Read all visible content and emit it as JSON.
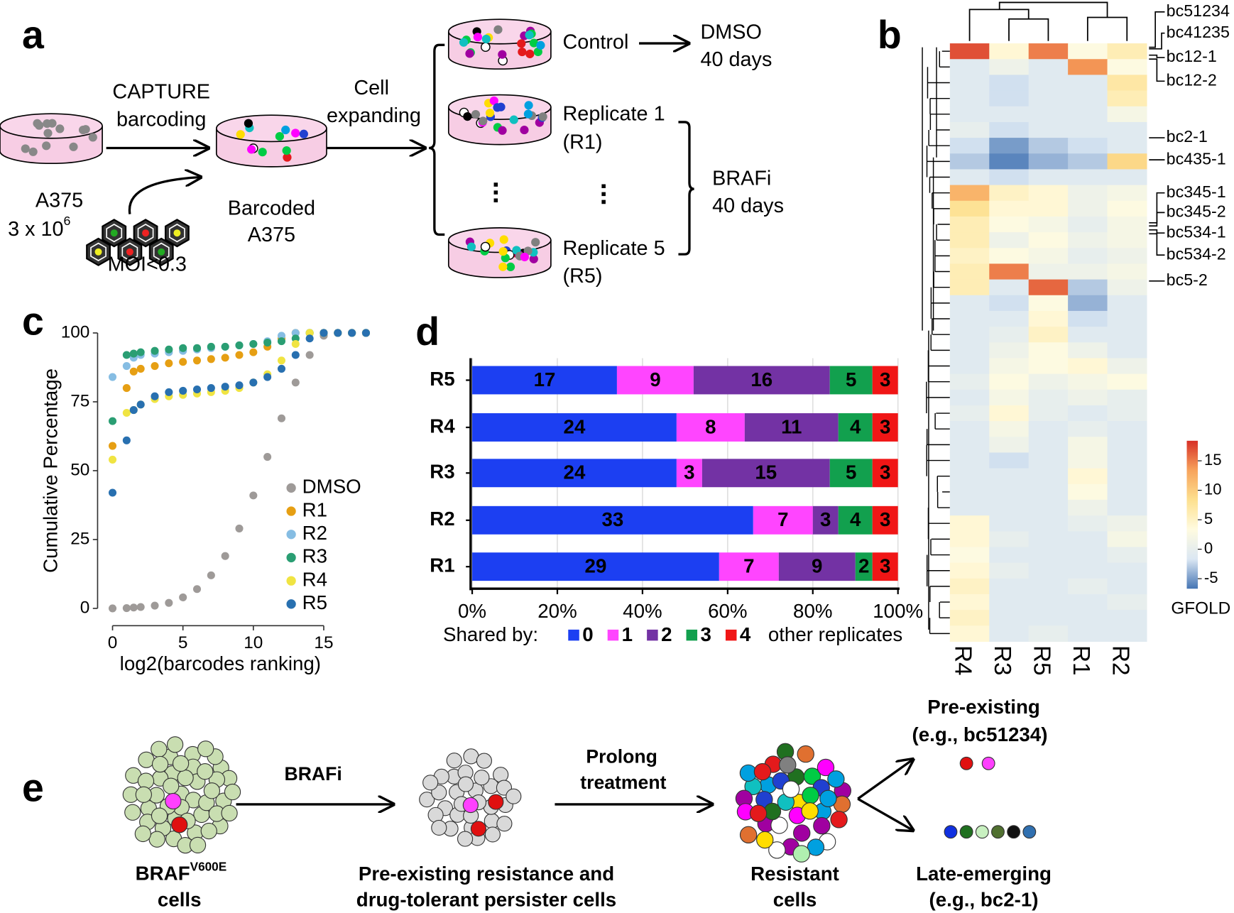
{
  "panel_labels": [
    "a",
    "b",
    "c",
    "d",
    "e"
  ],
  "diagram_a": {
    "start_cells": "A375",
    "start_count": "3 x 10",
    "start_count_exponent": "6",
    "barcoding": [
      "CAPTURE",
      "barcoding"
    ],
    "moi": "MOI<0.3",
    "barcoded": [
      "Barcoded",
      "A375"
    ],
    "expanding": [
      "Cell",
      "expanding"
    ],
    "control": "Control",
    "dmso": [
      "DMSO",
      "40 days"
    ],
    "replicate_1": [
      "Replicate 1",
      "(R1)"
    ],
    "replicate_5": [
      "Replicate 5",
      "(R5)"
    ],
    "brafi": [
      "BRAFi",
      "40 days"
    ]
  },
  "chart_data": [
    {
      "type": "heatmap",
      "columns": [
        "R4",
        "R3",
        "R5",
        "R1",
        "R2"
      ],
      "values": [
        [
          17,
          4,
          15,
          3,
          6
        ],
        [
          -1,
          1,
          -1,
          14,
          3
        ],
        [
          -1,
          -2,
          -1,
          -1,
          7
        ],
        [
          -1,
          -2,
          -1,
          -1,
          6
        ],
        [
          -1,
          -1,
          -1,
          -1,
          2
        ],
        [
          0,
          -2,
          -1,
          -1,
          -1
        ],
        [
          -2,
          -5,
          -3,
          -2,
          -1
        ],
        [
          -3,
          -6,
          -4,
          -3,
          9
        ],
        [
          -1,
          -2,
          -1,
          -1,
          -1
        ],
        [
          12,
          5,
          4,
          1,
          2
        ],
        [
          8,
          4,
          4,
          1,
          3
        ],
        [
          6,
          3,
          2,
          0,
          2
        ],
        [
          6,
          1,
          3,
          1,
          2
        ],
        [
          5,
          3,
          2,
          0,
          1
        ],
        [
          6,
          15,
          1,
          1,
          2
        ],
        [
          6,
          -1,
          16,
          -3,
          1
        ],
        [
          -1,
          -2,
          3,
          -4,
          -1
        ],
        [
          -1,
          -1,
          4,
          -2,
          -1
        ],
        [
          -1,
          0,
          5,
          -1,
          -1
        ],
        [
          -1,
          1,
          3,
          1,
          -1
        ],
        [
          -1,
          2,
          3,
          4,
          1
        ],
        [
          0,
          3,
          1,
          2,
          3
        ],
        [
          -1,
          2,
          0,
          1,
          0
        ],
        [
          0,
          4,
          0,
          -1,
          0
        ],
        [
          -1,
          2,
          -1,
          0,
          -1
        ],
        [
          -1,
          1,
          -1,
          2,
          -1
        ],
        [
          -1,
          -2,
          -1,
          2,
          -1
        ],
        [
          -1,
          -1,
          -1,
          4,
          -1
        ],
        [
          -1,
          -1,
          -1,
          3,
          -1
        ],
        [
          -1,
          -1,
          -1,
          1,
          -1
        ],
        [
          4,
          -1,
          -1,
          0,
          1
        ],
        [
          4,
          0,
          -1,
          -1,
          2
        ],
        [
          3,
          -1,
          -1,
          -1,
          0
        ],
        [
          4,
          0,
          -1,
          -1,
          -1
        ],
        [
          5,
          -1,
          -1,
          0,
          -1
        ],
        [
          4,
          -1,
          -1,
          -1,
          0
        ],
        [
          5,
          -1,
          -1,
          -1,
          -1
        ],
        [
          4,
          -1,
          0,
          -1,
          -1
        ]
      ],
      "annotations": [
        "bc51234",
        "bc41235",
        "bc12-1",
        "bc12-2",
        "bc2-1",
        "bc435-1",
        "bc345-1",
        "bc345-2",
        "bc534-1",
        "bc534-2",
        "bc5-2"
      ],
      "colorscale": [
        "#4575b4",
        "#dbe7f3",
        "#fffbe0",
        "#fde08f",
        "#f7a35c",
        "#d73027"
      ],
      "colorbar": {
        "label": "GFOLD",
        "lim": [
          -6.7,
          18.4
        ],
        "ticks": [
          -5,
          0,
          5,
          10,
          15
        ]
      }
    },
    {
      "type": "scatter",
      "ylabel": "Cumulative Percentage",
      "xlabel": "log2(barcodes ranking)",
      "x": [
        0,
        1,
        1.5,
        2,
        3,
        4,
        5,
        6,
        7,
        8,
        9,
        10,
        11,
        12,
        13,
        14,
        15,
        16,
        17,
        18
      ],
      "series": [
        {
          "name": "DMSO",
          "color": "#9e9a98",
          "values": [
            0,
            0.1,
            0.3,
            0.5,
            1,
            2,
            4,
            7,
            12,
            19,
            29,
            41,
            55,
            69,
            82,
            92,
            99,
            100,
            100,
            100
          ]
        },
        {
          "name": "R1",
          "color": "#e69f13",
          "values": [
            59,
            80,
            86,
            87,
            88,
            89,
            89.5,
            90,
            90.5,
            91,
            92,
            93,
            95,
            98,
            100,
            100,
            100,
            100,
            100,
            100
          ]
        },
        {
          "name": "R2",
          "color": "#86bde3",
          "values": [
            84,
            88,
            91,
            92,
            92.5,
            93,
            93.5,
            94,
            94.5,
            95,
            95.5,
            96,
            97,
            99,
            100,
            100,
            100,
            100,
            100,
            100
          ]
        },
        {
          "name": "R3",
          "color": "#2a9e73",
          "values": [
            68,
            92,
            92.5,
            93,
            93.5,
            94,
            94.5,
            94.5,
            95,
            95,
            95.5,
            96,
            96.5,
            97,
            98,
            100,
            100,
            100,
            100,
            100
          ]
        },
        {
          "name": "R4",
          "color": "#f0e442",
          "values": [
            54,
            71,
            72,
            74,
            76,
            77,
            77.5,
            78,
            78.5,
            79,
            80,
            82,
            85,
            90,
            96,
            100,
            100,
            100,
            100,
            100
          ]
        },
        {
          "name": "R5",
          "color": "#2870b0",
          "values": [
            42,
            61,
            72,
            74,
            77,
            78.5,
            79,
            79.5,
            80,
            80.5,
            81,
            82,
            84,
            87,
            92,
            98,
            100,
            100,
            100,
            100
          ]
        }
      ],
      "xlim": [
        -0.8,
        18.5
      ],
      "ylim": [
        -3,
        104
      ],
      "xticks": [
        0,
        5,
        10,
        15
      ],
      "yticks": [
        0,
        25,
        50,
        75,
        100
      ],
      "legend": "lower right"
    },
    {
      "type": "stacked-bar-100",
      "orientation": "horizontal",
      "categories": [
        "R5",
        "R4",
        "R3",
        "R2",
        "R1"
      ],
      "series": [
        {
          "name": "0",
          "color": "#1c3ff2",
          "values": [
            17,
            24,
            24,
            33,
            29
          ]
        },
        {
          "name": "1",
          "color": "#ff45ff",
          "values": [
            9,
            8,
            3,
            7,
            7
          ]
        },
        {
          "name": "2",
          "color": "#7332a4",
          "values": [
            16,
            11,
            15,
            3,
            9
          ]
        },
        {
          "name": "3",
          "color": "#12a04e",
          "values": [
            5,
            4,
            5,
            4,
            2
          ]
        },
        {
          "name": "4",
          "color": "#f01616",
          "values": [
            3,
            3,
            3,
            3,
            3
          ]
        }
      ],
      "xlim": [
        0,
        1
      ],
      "xticks": [
        {
          "value": 0,
          "label": "0%"
        },
        {
          "value": 0.2,
          "label": "20%"
        },
        {
          "value": 0.4,
          "label": "40%"
        },
        {
          "value": 0.6,
          "label": "60%"
        },
        {
          "value": 0.8,
          "label": "80%"
        },
        {
          "value": 1,
          "label": "100%"
        }
      ],
      "legend_title": "Shared by:",
      "legend_suffix": "other replicates",
      "grid": true
    }
  ],
  "diagram_e": {
    "step_1": "BRAFi",
    "step_2": [
      "Prolong",
      "treatment"
    ],
    "start_cells": "BRAF",
    "start_cells_superscript": "V600E",
    "start_cells_2": "cells",
    "persisters": [
      "Pre-existing resistance and",
      "drug-tolerant persister cells"
    ],
    "resistant": [
      "Resistant",
      "cells"
    ],
    "pre_existing": [
      "Pre-existing",
      "(e.g., bc51234)"
    ],
    "late_emerging": [
      "Late-emerging",
      "(e.g., bc2-1)"
    ]
  }
}
